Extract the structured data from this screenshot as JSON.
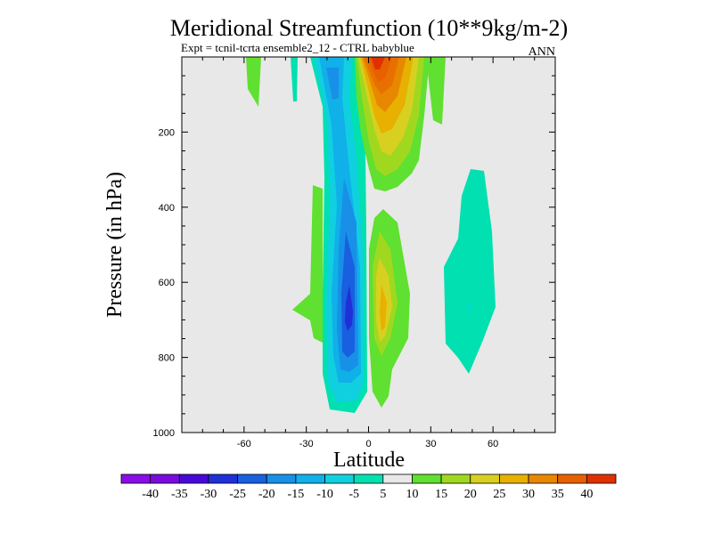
{
  "chart_data": {
    "type": "contour",
    "title": "Meridional Streamfunction (10**9kg/m-2)",
    "subtitle": "Expt = tcnil-tcrta   ensemble2_12 - CTRL babyblue",
    "season": "ANN",
    "xlabel": "Latitude",
    "ylabel": "Pressure (in hPa)",
    "xlim": [
      -90,
      90
    ],
    "ylim": [
      1000,
      0
    ],
    "y_inverted": true,
    "xticks": [
      -60,
      -30,
      0,
      30,
      60
    ],
    "xticklabels": [
      "-60",
      "-30",
      "0",
      "30",
      "60"
    ],
    "yticks": [
      200,
      400,
      600,
      800,
      1000
    ],
    "yticklabels": [
      "200",
      "400",
      "600",
      "800",
      "1000"
    ],
    "background": "#e8e8e8",
    "colorbar": {
      "labels": [
        "-40",
        "-35",
        "-30",
        "-25",
        "-20",
        "-15",
        "-10",
        "-5",
        "5",
        "10",
        "15",
        "20",
        "25",
        "30",
        "35",
        "40"
      ],
      "colors": [
        "#7a0be0",
        "#4a08d8",
        "#2030d8",
        "#1860e0",
        "#1890e8",
        "#10b0e8",
        "#10d0e0",
        "#00e0b0",
        "#e8e8e8",
        "#60e030",
        "#a0d820",
        "#d8d020",
        "#e8b000",
        "#e88800",
        "#e86000",
        "#e03000"
      ]
    },
    "features": [
      {
        "kind": "negative",
        "value": -30,
        "note": "southern hemisphere cell centered near -4 lat, 670 hPa"
      },
      {
        "kind": "positive",
        "value": 40,
        "note": "upper cell near 5 lat, top of domain"
      },
      {
        "kind": "positive",
        "value": 20,
        "note": "cell near 5 lat, 680 hPa"
      },
      {
        "kind": "negative",
        "value": -5,
        "note": "cell near 48 lat, 600 hPa"
      }
    ]
  }
}
